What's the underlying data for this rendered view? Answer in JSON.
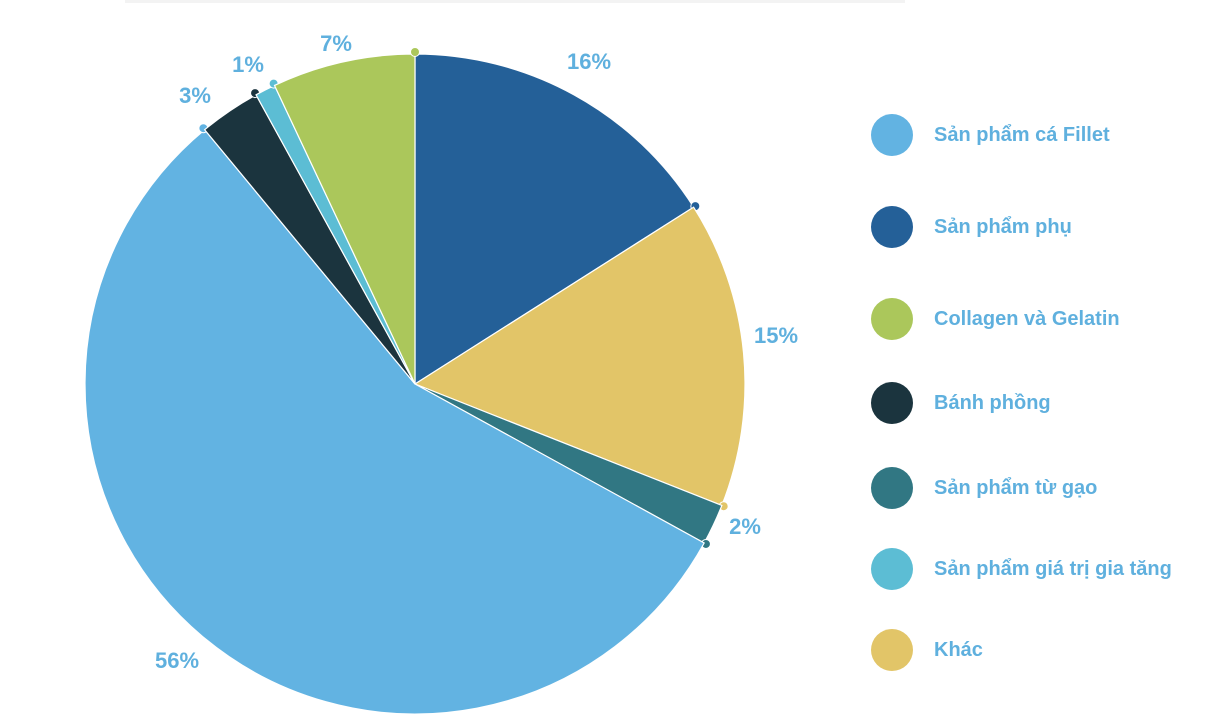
{
  "chart_data": {
    "type": "pie",
    "title": "",
    "legend_position": "right",
    "slices": [
      {
        "name": "Sản phẩm phụ",
        "value": 16,
        "label": "16%",
        "color": "#246098"
      },
      {
        "name": "Khác",
        "value": 15,
        "label": "15%",
        "color": "#e2c568"
      },
      {
        "name": "Sản phẩm từ gạo",
        "value": 2,
        "label": "2%",
        "color": "#317783"
      },
      {
        "name": "Sản phẩm cá Fillet",
        "value": 56,
        "label": "56%",
        "color": "#62b3e2"
      },
      {
        "name": "Bánh phồng",
        "value": 3,
        "label": "3%",
        "color": "#1b343e"
      },
      {
        "name": "Sản phẩm giá trị gia tăng",
        "value": 1,
        "label": "1%",
        "color": "#5cbdd4"
      },
      {
        "name": "Collagen và Gelatin",
        "value": 7,
        "label": "7%",
        "color": "#abc75b"
      }
    ],
    "legend": [
      {
        "label": "Sản phẩm cá Fillet",
        "color": "#62b3e2"
      },
      {
        "label": "Sản phẩm phụ",
        "color": "#246098"
      },
      {
        "label": "Collagen và Gelatin",
        "color": "#abc75b"
      },
      {
        "label": "Bánh phồng",
        "color": "#1b343e"
      },
      {
        "label": "Sản phẩm từ gạo",
        "color": "#317783"
      },
      {
        "label": "Sản phẩm giá trị gia tăng",
        "color": "#5cbdd4"
      },
      {
        "label": "Khác",
        "color": "#e2c568"
      }
    ]
  }
}
